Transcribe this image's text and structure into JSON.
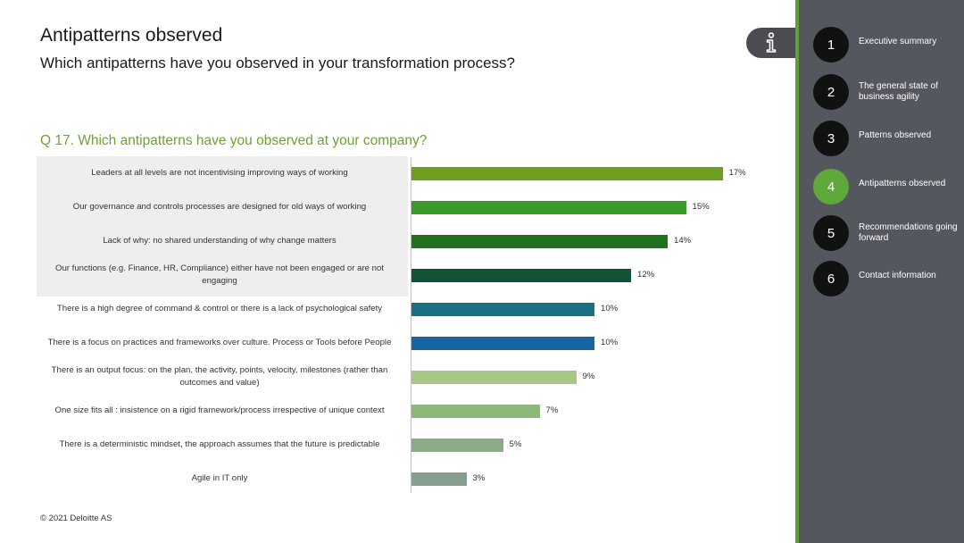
{
  "header": {
    "title": "Antipatterns observed",
    "subtitle": "Which antipatterns have you observed in your transformation process?"
  },
  "question": "Q 17. Which antipatterns have you observed at your company?",
  "footer": {
    "copyright": "© 2021 Deloitte AS"
  },
  "sidebar": {
    "info_icon": "info-icon",
    "accent_color": "#5fa83a",
    "items": [
      {
        "number": "1",
        "label": "Executive summary",
        "active": false
      },
      {
        "number": "2",
        "label": "The general state of business agility",
        "active": false
      },
      {
        "number": "3",
        "label": "Patterns observed",
        "active": false
      },
      {
        "number": "4",
        "label": "Antipatterns observed",
        "active": true
      },
      {
        "number": "5",
        "label": "Recommendations going forward",
        "active": false
      },
      {
        "number": "6",
        "label": "Contact information",
        "active": false
      }
    ]
  },
  "chart_data": {
    "type": "bar",
    "orientation": "horizontal",
    "title": "Q 17. Which antipatterns have you observed at your company?",
    "xlim": [
      0,
      17
    ],
    "grid": false,
    "categories": [
      "Leaders at all levels are not incentivising improving ways of working",
      "Our governance and controls processes are designed for old ways of working",
      "Lack of why: no shared understanding of why change matters",
      "Our functions (e.g. Finance, HR, Compliance) either have not been engaged or are not engaging",
      "There is a high degree of command & control or there is a lack of psychological safety",
      "There is a focus on practices and frameworks over culture. Process or Tools before People",
      "There is an output focus: on the plan, the activity, points, velocity, milestones (rather than outcomes and value)",
      "One size fits all : insistence on a rigid framework/process irrespective of unique context",
      "There is a deterministic mindset, the approach assumes that the future is predictable",
      "Agile in IT only"
    ],
    "values": [
      17,
      15,
      14,
      12,
      10,
      10,
      9,
      7,
      5,
      3
    ],
    "value_labels": [
      "17%",
      "15%",
      "14%",
      "12%",
      "10%",
      "10%",
      "9%",
      "7%",
      "5%",
      "3%"
    ],
    "colors": [
      "#6e9e1f",
      "#3a9a2b",
      "#21711d",
      "#0f5535",
      "#1a6f85",
      "#1863a1",
      "#a8c785",
      "#8cb87a",
      "#8aab86",
      "#87a08e"
    ]
  }
}
